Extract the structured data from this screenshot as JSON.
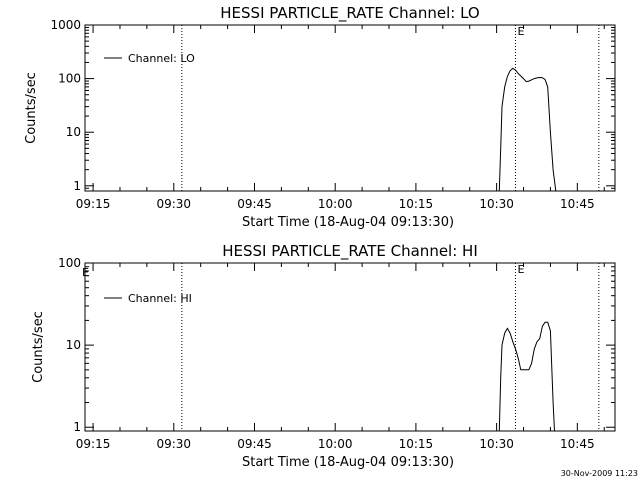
{
  "chart_data": [
    {
      "type": "line",
      "title": "HESSI PARTICLE_RATE Channel: LO",
      "xlabel": "Start Time (18-Aug-04 09:13:30)",
      "ylabel": "Counts/sec",
      "y_scale": "log",
      "ylim": [
        0.8,
        1000
      ],
      "xlim": [
        "09:13:30",
        "10:52:00"
      ],
      "x_ticks": [
        "09:15",
        "09:30",
        "09:45",
        "10:00",
        "10:15",
        "10:30",
        "10:45"
      ],
      "y_ticks": [
        "1",
        "10",
        "100",
        "1000"
      ],
      "legend": {
        "entries": [
          "Channel: LO"
        ],
        "placement": "top-left"
      },
      "vertical_markers": [
        {
          "time": "09:31:30",
          "label": ""
        },
        {
          "time": "10:33:30",
          "label": "E"
        },
        {
          "time": "10:49:00",
          "label": ""
        }
      ],
      "series": [
        {
          "name": "Channel: LO",
          "points": [
            [
              "10:30:30",
              0.8
            ],
            [
              "10:30:45",
              5
            ],
            [
              "10:31:00",
              30
            ],
            [
              "10:31:30",
              70
            ],
            [
              "10:32:00",
              110
            ],
            [
              "10:32:30",
              140
            ],
            [
              "10:33:00",
              155
            ],
            [
              "10:33:30",
              145
            ],
            [
              "10:34:00",
              125
            ],
            [
              "10:35:00",
              100
            ],
            [
              "10:35:30",
              88
            ],
            [
              "10:36:00",
              90
            ],
            [
              "10:36:30",
              95
            ],
            [
              "10:37:00",
              100
            ],
            [
              "10:37:30",
              103
            ],
            [
              "10:38:00",
              105
            ],
            [
              "10:38:30",
              104
            ],
            [
              "10:39:00",
              96
            ],
            [
              "10:39:30",
              70
            ],
            [
              "10:40:00",
              10
            ],
            [
              "10:40:30",
              2
            ],
            [
              "10:41:00",
              0.8
            ]
          ]
        }
      ]
    },
    {
      "type": "line",
      "title": "HESSI PARTICLE_RATE Channel: HI",
      "xlabel": "Start Time (18-Aug-04 09:13:30)",
      "ylabel": "Counts/sec",
      "y_scale": "log",
      "ylim": [
        0.9,
        100
      ],
      "xlim": [
        "09:13:30",
        "10:52:00"
      ],
      "x_ticks": [
        "09:15",
        "09:30",
        "09:45",
        "10:00",
        "10:15",
        "10:30",
        "10:45"
      ],
      "y_ticks": [
        "1",
        "10",
        "100"
      ],
      "legend": {
        "entries": [
          "Channel: HI"
        ],
        "placement": "top-left"
      },
      "vertical_markers": [
        {
          "time": "09:31:30",
          "label": ""
        },
        {
          "time": "10:33:30",
          "label": "E"
        },
        {
          "time": "10:49:00",
          "label": ""
        }
      ],
      "corner_label": "E",
      "series": [
        {
          "name": "Channel: HI",
          "points": [
            [
              "10:30:30",
              0.9
            ],
            [
              "10:30:45",
              4
            ],
            [
              "10:31:00",
              10
            ],
            [
              "10:31:30",
              14
            ],
            [
              "10:32:00",
              16
            ],
            [
              "10:32:30",
              14
            ],
            [
              "10:33:00",
              11
            ],
            [
              "10:33:30",
              9
            ],
            [
              "10:34:00",
              7
            ],
            [
              "10:34:30",
              5
            ],
            [
              "10:35:00",
              5
            ],
            [
              "10:36:00",
              5
            ],
            [
              "10:36:30",
              6
            ],
            [
              "10:37:00",
              9
            ],
            [
              "10:37:30",
              11
            ],
            [
              "10:38:00",
              12
            ],
            [
              "10:38:30",
              17
            ],
            [
              "10:39:00",
              19
            ],
            [
              "10:39:30",
              19
            ],
            [
              "10:40:00",
              15
            ],
            [
              "10:40:30",
              2
            ],
            [
              "10:40:45",
              0.9
            ]
          ]
        }
      ]
    }
  ],
  "footer": {
    "timestamp": "30-Nov-2009 11:23"
  }
}
